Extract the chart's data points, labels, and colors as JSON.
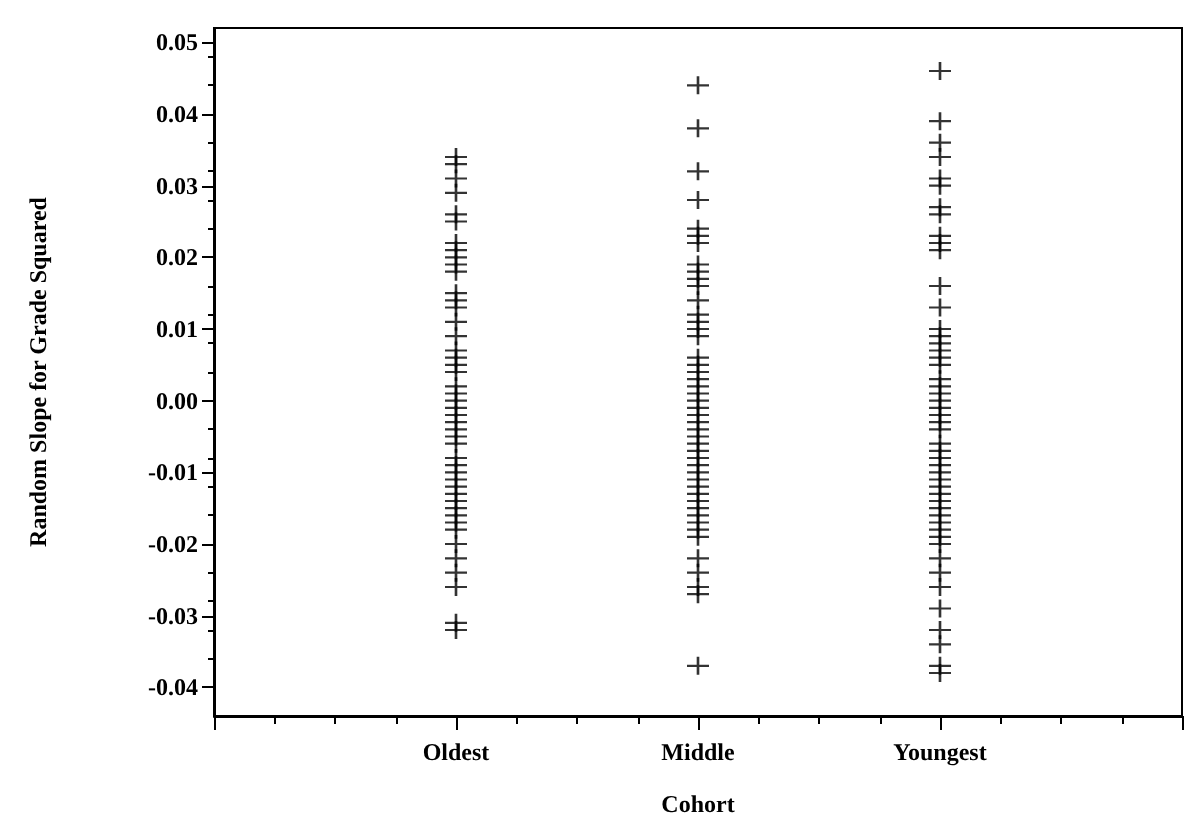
{
  "chart_data": {
    "type": "scatter",
    "xlabel": "Cohort",
    "ylabel": "Random Slope for Grade Squared",
    "categories": [
      null,
      "Oldest",
      "Middle",
      "Youngest",
      null
    ],
    "ylim": [
      -0.044,
      0.052
    ],
    "yticks": [
      -0.04,
      -0.03,
      -0.02,
      -0.01,
      {
        "value": 0,
        "label": "0.00"
      },
      0.01,
      0.02,
      0.03,
      0.04,
      0.05
    ],
    "grid": false,
    "marker": "cross",
    "series": [
      {
        "color": "#000000",
        "x": [
          "Oldest",
          "Oldest",
          "Oldest",
          "Oldest",
          "Oldest",
          "Oldest",
          "Oldest",
          "Oldest",
          "Oldest",
          "Oldest",
          "Oldest",
          "Oldest",
          "Oldest",
          "Oldest",
          "Oldest",
          "Oldest",
          "Oldest",
          "Oldest",
          "Oldest",
          "Oldest",
          "Oldest",
          "Oldest",
          "Oldest",
          "Oldest",
          "Oldest",
          "Oldest",
          "Oldest",
          "Oldest",
          "Oldest",
          "Oldest",
          "Oldest",
          "Oldest",
          "Oldest",
          "Oldest",
          "Oldest",
          "Oldest",
          "Oldest",
          "Oldest",
          "Oldest",
          "Oldest",
          "Oldest",
          "Oldest",
          "Oldest",
          "Oldest",
          "Oldest",
          "Oldest"
        ],
        "values": [
          0.034,
          0.033,
          0.031,
          0.029,
          0.026,
          0.025,
          0.022,
          0.021,
          0.02,
          0.019,
          0.018,
          0.015,
          0.014,
          0.013,
          0.011,
          0.009,
          0.007,
          0.006,
          0.005,
          0.004,
          0.002,
          0.001,
          0.0,
          -0.001,
          -0.002,
          -0.003,
          -0.004,
          -0.005,
          -0.006,
          -0.008,
          -0.009,
          -0.01,
          -0.011,
          -0.012,
          -0.013,
          -0.014,
          -0.015,
          -0.016,
          -0.017,
          -0.018,
          -0.02,
          -0.022,
          -0.024,
          -0.026,
          -0.031,
          -0.032
        ]
      },
      {
        "color": "#000000",
        "x": [
          "Middle",
          "Middle",
          "Middle",
          "Middle",
          "Middle",
          "Middle",
          "Middle",
          "Middle",
          "Middle",
          "Middle",
          "Middle",
          "Middle",
          "Middle",
          "Middle",
          "Middle",
          "Middle",
          "Middle",
          "Middle",
          "Middle",
          "Middle",
          "Middle",
          "Middle",
          "Middle",
          "Middle",
          "Middle",
          "Middle",
          "Middle",
          "Middle",
          "Middle",
          "Middle",
          "Middle",
          "Middle",
          "Middle",
          "Middle",
          "Middle",
          "Middle",
          "Middle",
          "Middle",
          "Middle",
          "Middle",
          "Middle",
          "Middle",
          "Middle",
          "Middle",
          "Middle",
          "Middle",
          "Middle"
        ],
        "values": [
          0.044,
          0.038,
          0.032,
          0.028,
          0.024,
          0.023,
          0.022,
          0.019,
          0.018,
          0.017,
          0.016,
          0.014,
          0.012,
          0.011,
          0.01,
          0.009,
          0.006,
          0.005,
          0.004,
          0.003,
          0.002,
          0.001,
          0.0,
          -0.001,
          -0.002,
          -0.003,
          -0.004,
          -0.005,
          -0.006,
          -0.007,
          -0.008,
          -0.009,
          -0.01,
          -0.011,
          -0.012,
          -0.013,
          -0.014,
          -0.015,
          -0.016,
          -0.017,
          -0.018,
          -0.019,
          -0.022,
          -0.024,
          -0.026,
          -0.027,
          -0.037
        ]
      },
      {
        "color": "#000000",
        "x": [
          "Youngest",
          "Youngest",
          "Youngest",
          "Youngest",
          "Youngest",
          "Youngest",
          "Youngest",
          "Youngest",
          "Youngest",
          "Youngest",
          "Youngest",
          "Youngest",
          "Youngest",
          "Youngest",
          "Youngest",
          "Youngest",
          "Youngest",
          "Youngest",
          "Youngest",
          "Youngest",
          "Youngest",
          "Youngest",
          "Youngest",
          "Youngest",
          "Youngest",
          "Youngest",
          "Youngest",
          "Youngest",
          "Youngest",
          "Youngest",
          "Youngest",
          "Youngest",
          "Youngest",
          "Youngest",
          "Youngest",
          "Youngest",
          "Youngest",
          "Youngest",
          "Youngest",
          "Youngest",
          "Youngest",
          "Youngest",
          "Youngest",
          "Youngest",
          "Youngest",
          "Youngest",
          "Youngest",
          "Youngest",
          "Youngest",
          "Youngest"
        ],
        "values": [
          0.046,
          0.039,
          0.036,
          0.034,
          0.031,
          0.03,
          0.027,
          0.026,
          0.023,
          0.022,
          0.021,
          0.016,
          0.013,
          0.01,
          0.009,
          0.008,
          0.007,
          0.006,
          0.005,
          0.003,
          0.002,
          0.001,
          0.0,
          -0.001,
          -0.002,
          -0.003,
          -0.004,
          -0.006,
          -0.007,
          -0.008,
          -0.009,
          -0.01,
          -0.011,
          -0.012,
          -0.013,
          -0.014,
          -0.015,
          -0.016,
          -0.017,
          -0.018,
          -0.019,
          -0.02,
          -0.022,
          -0.024,
          -0.026,
          -0.029,
          -0.032,
          -0.034,
          -0.037,
          -0.038
        ]
      }
    ]
  }
}
